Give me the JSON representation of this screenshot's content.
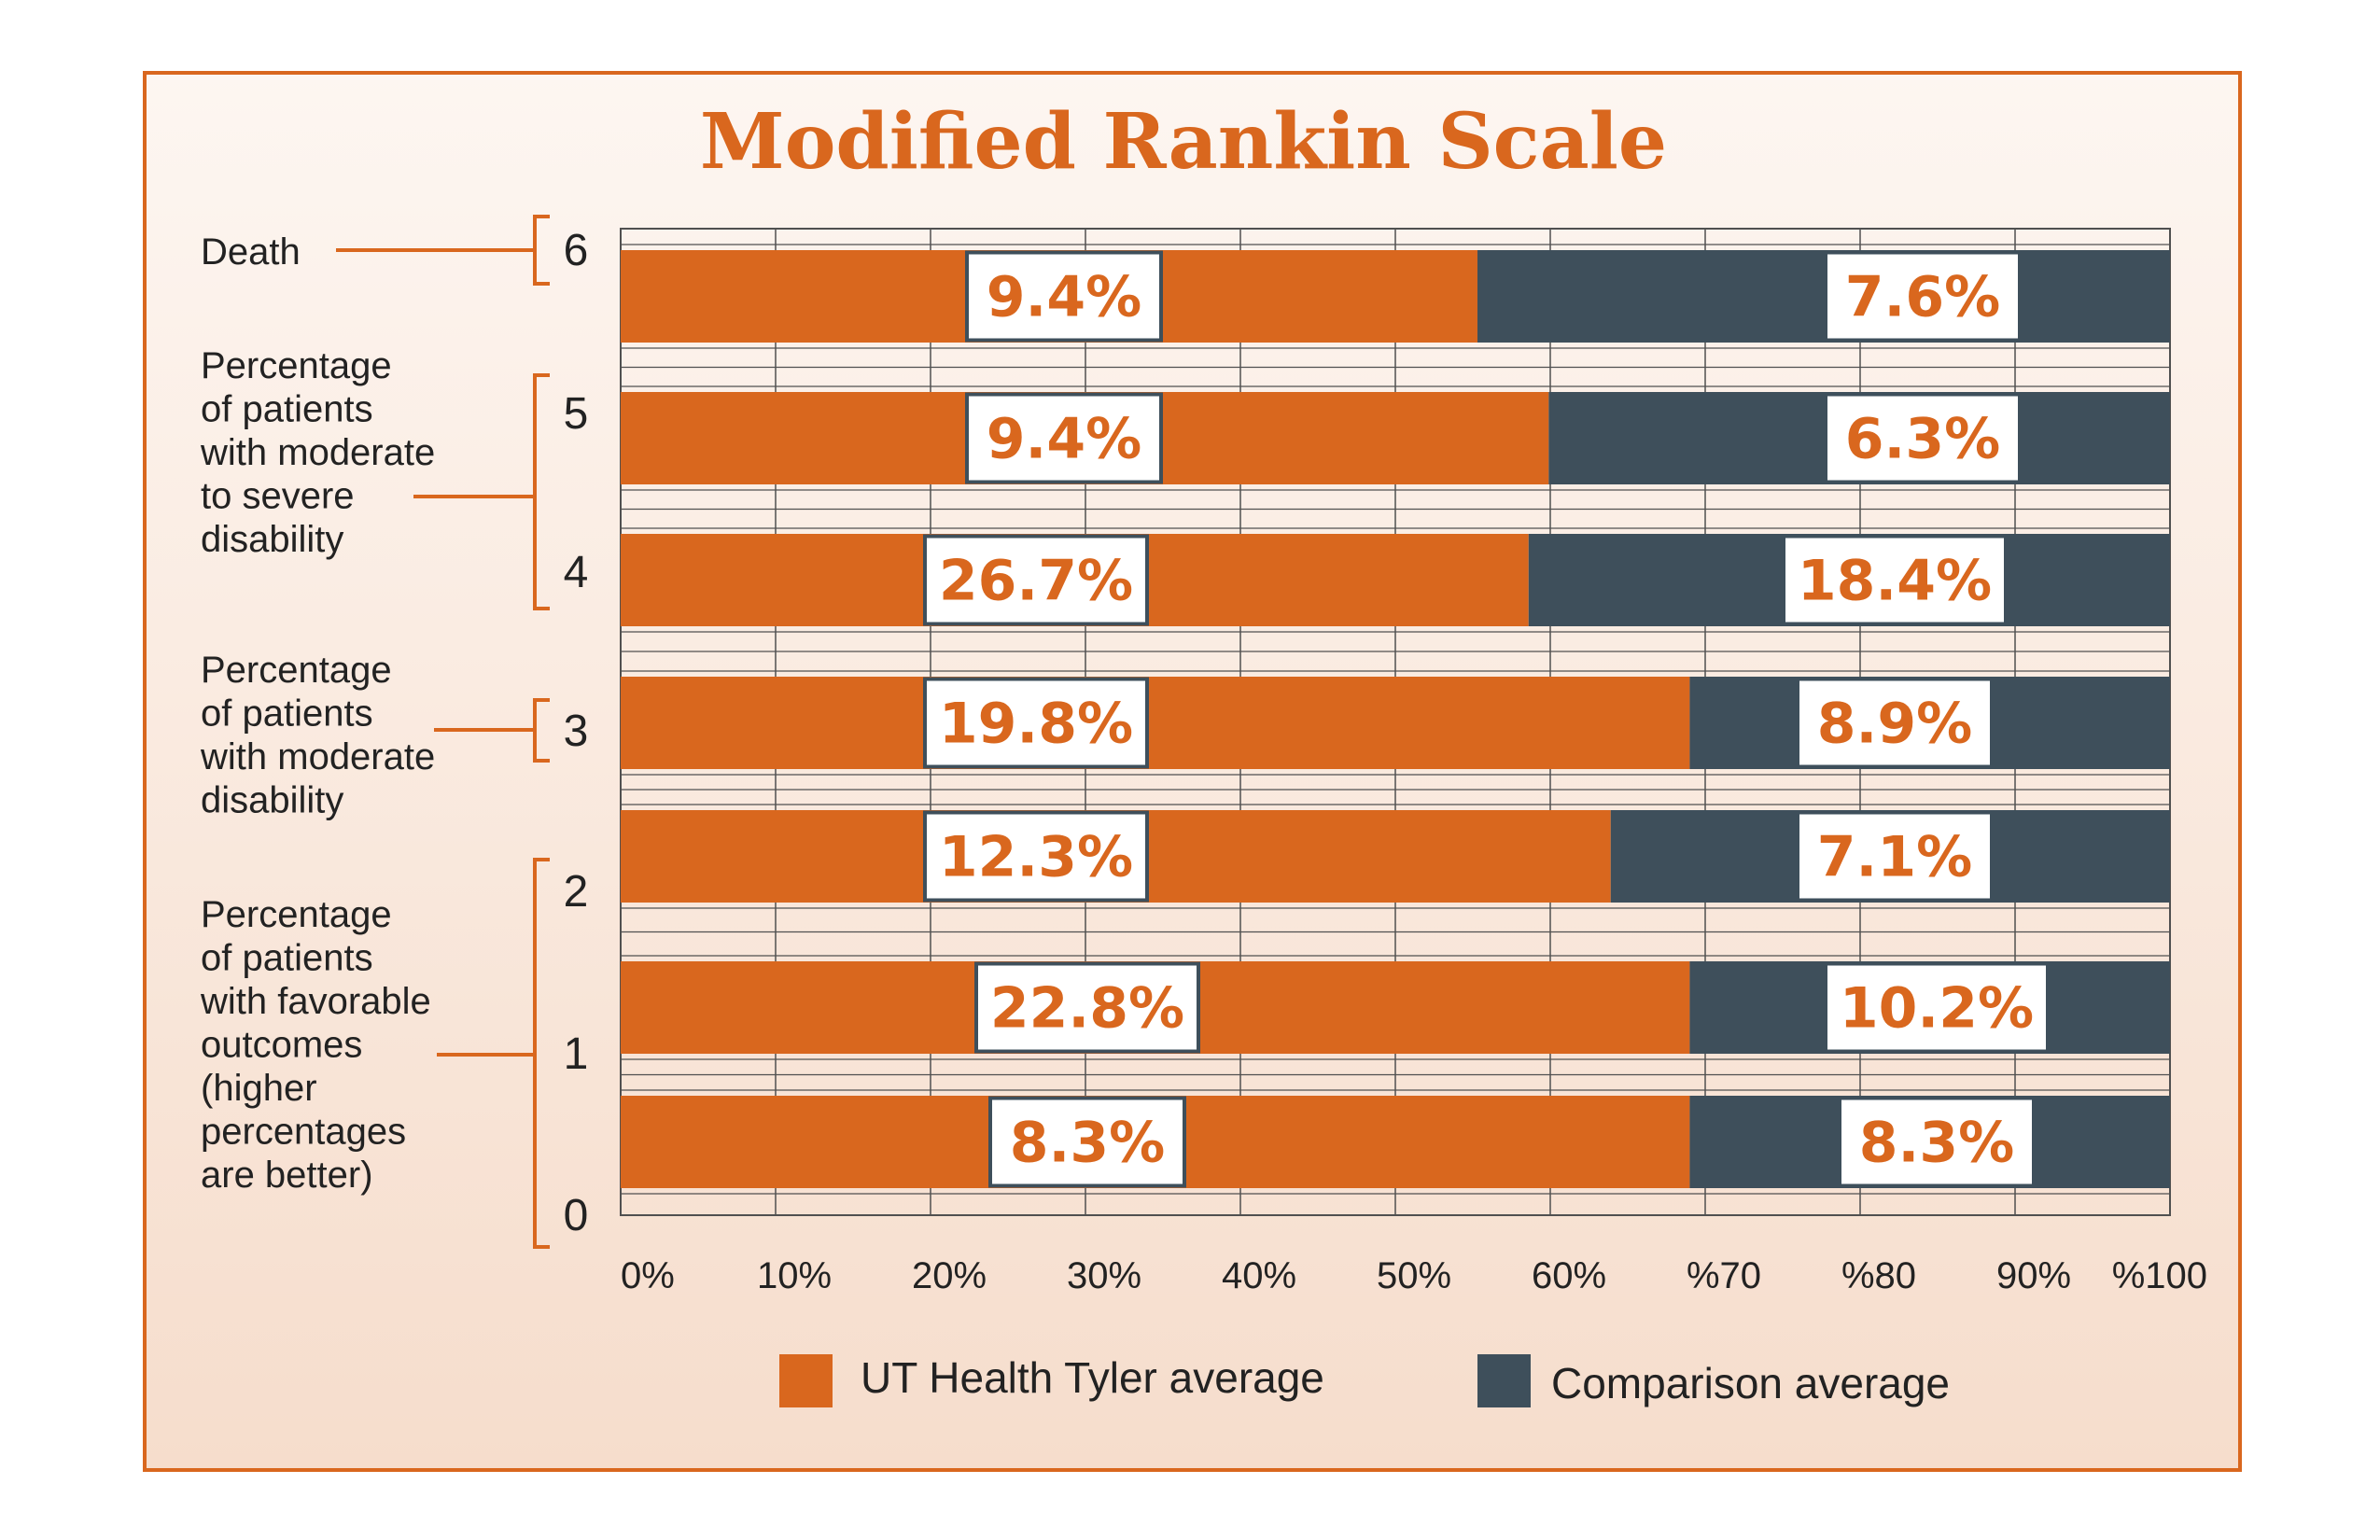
{
  "chart_data": {
    "type": "bar",
    "stacked": true,
    "orientation": "horizontal",
    "title": "Modified Rankin Scale",
    "categories": [
      "6",
      "5",
      "4",
      "3",
      "2",
      "1",
      "0"
    ],
    "series": [
      {
        "name": "UT Health Tyler average",
        "color": "#d9671e",
        "values": [
          55.3,
          59.9,
          58.6,
          69.0,
          63.9,
          69.0,
          69.0
        ],
        "labels": [
          "9.4%",
          "9.4%",
          "26.7%",
          "19.8%",
          "12.3%",
          "22.8%",
          "8.3%"
        ]
      },
      {
        "name": "Comparison average",
        "color": "#3e4f5b",
        "values": [
          44.7,
          40.1,
          41.4,
          31.0,
          36.1,
          31.0,
          31.0
        ],
        "labels": [
          "7.6%",
          "6.3%",
          "18.4%",
          "8.9%",
          "7.1%",
          "10.2%",
          "8.3%"
        ]
      }
    ],
    "x_ticks": [
      "0%",
      "10%",
      "20%",
      "30%",
      "40%",
      "50%",
      "60%",
      "%70",
      "%80",
      "90%",
      "%100"
    ],
    "y_ticks": [
      "6",
      "5",
      "4",
      "3",
      "2",
      "1",
      "0"
    ],
    "xlim": [
      0,
      100
    ],
    "grid": true,
    "legend_position": "bottom",
    "groups": [
      {
        "label": "Death",
        "ranks": [
          "6"
        ]
      },
      {
        "label": "Percentage of patients with moderate to severe disability",
        "ranks": [
          "5",
          "4"
        ]
      },
      {
        "label": "Percentage of patients with moderate disability",
        "ranks": [
          "3"
        ]
      },
      {
        "label": "Percentage of patients with favorable outcomes (higher percentages are better)",
        "ranks": [
          "2",
          "1",
          "0"
        ]
      }
    ]
  },
  "group_label_lines": [
    [
      "Death"
    ],
    [
      "Percentage",
      "of patients",
      "with moderate",
      "to severe",
      "disability"
    ],
    [
      "Percentage",
      "of patients",
      "with moderate",
      "disability"
    ],
    [
      "Percentage",
      "of patients",
      "with favorable",
      "outcomes",
      "(higher",
      "percentages",
      "are better)"
    ]
  ],
  "colors": {
    "accent": "#d9671e",
    "comparison": "#3e4f5b",
    "frame": "#d9671e",
    "bg_top": "#fdf6f1",
    "bg_bottom": "#f6ddcc",
    "grid": "#505050"
  }
}
